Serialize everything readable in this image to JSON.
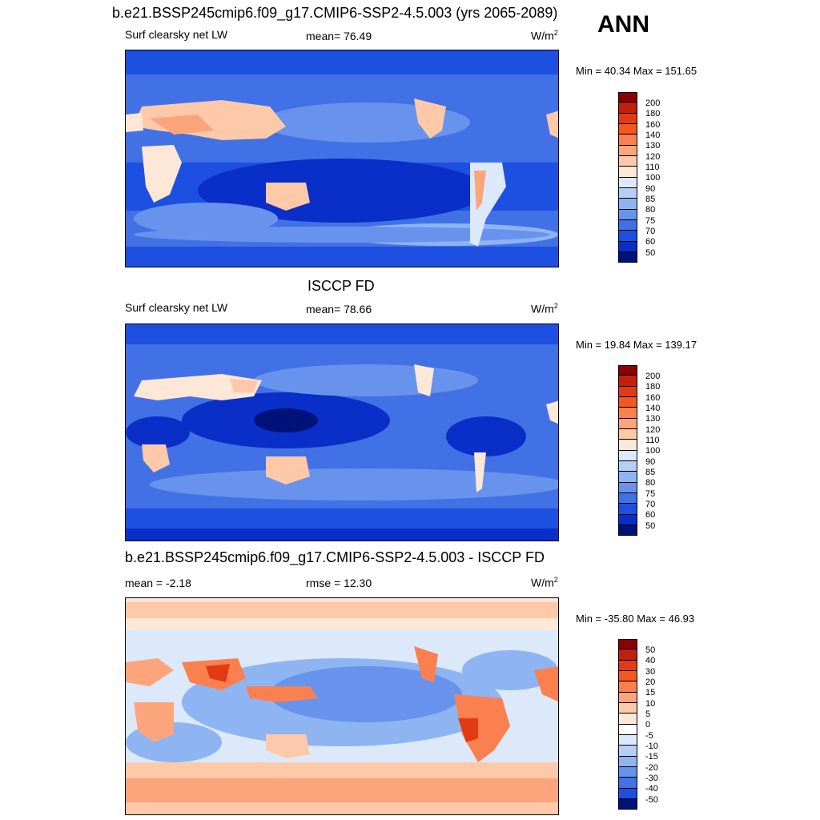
{
  "season": "ANN",
  "panels": [
    {
      "title": "b.e21.BSSP245cmip6.f09_g17.CMIP6-SSP2-4.5.003 (yrs 2065-2089)",
      "left_text": "Surf clearsky net LW",
      "center_text": "mean=  76.49",
      "units_base": "W/m",
      "units_exp": "2",
      "minmax": "Min =  40.34 Max = 151.65",
      "colorbar_labels": [
        "200",
        "180",
        "160",
        "140",
        "130",
        "120",
        "110",
        "100",
        "90",
        "85",
        "80",
        "75",
        "70",
        "60",
        "50"
      ]
    },
    {
      "title": "ISCCP FD",
      "left_text": "Surf clearsky net LW",
      "center_text": "mean=  78.66",
      "units_base": "W/m",
      "units_exp": "2",
      "minmax": "Min =  19.84 Max = 139.17",
      "colorbar_labels": [
        "200",
        "180",
        "160",
        "140",
        "130",
        "120",
        "110",
        "100",
        "90",
        "85",
        "80",
        "75",
        "70",
        "60",
        "50"
      ]
    },
    {
      "title": "b.e21.BSSP245cmip6.f09_g17.CMIP6-SSP2-4.5.003 - ISCCP FD",
      "left_text": "mean =  -2.18",
      "center_text": "rmse =  12.30",
      "units_base": "W/m",
      "units_exp": "2",
      "minmax": "Min = -35.80 Max =  46.93",
      "colorbar_labels": [
        "50",
        "40",
        "30",
        "20",
        "15",
        "10",
        "5",
        "0",
        "-5",
        "-10",
        "-15",
        "-20",
        "-30",
        "-40",
        "-50"
      ]
    }
  ],
  "colors": {
    "abs_scale": [
      "#8b0000",
      "#c0200e",
      "#e23b14",
      "#f5581e",
      "#fb8050",
      "#fca57c",
      "#fdc9a8",
      "#fde7d6",
      "#dce9fb",
      "#b5cff7",
      "#8fb4f2",
      "#6893ec",
      "#4271e6",
      "#1d4fe0",
      "#0a2fc8",
      "#00127a"
    ],
    "diff_scale": [
      "#8b0000",
      "#c0200e",
      "#e23b14",
      "#f5581e",
      "#fb8050",
      "#fca57c",
      "#fdc9a8",
      "#fde7d6",
      "#ffffff",
      "#dce9fb",
      "#b5cff7",
      "#8fb4f2",
      "#6893ec",
      "#4271e6",
      "#1d4fe0",
      "#00127a"
    ]
  }
}
